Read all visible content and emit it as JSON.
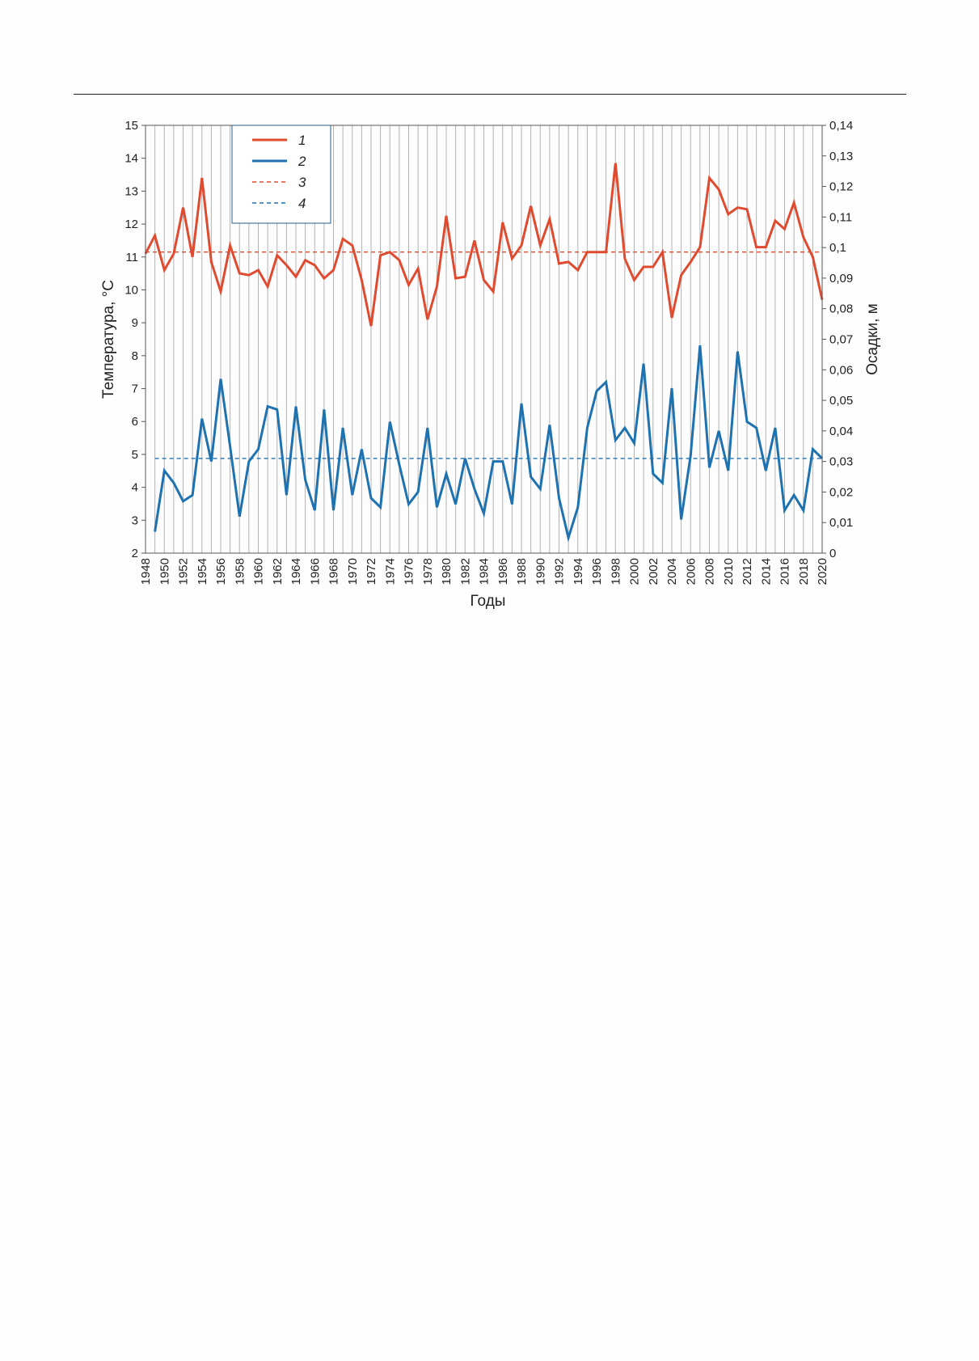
{
  "chart_data": {
    "type": "line",
    "xlabel": "Годы",
    "ylabel_left": "Температура, °С",
    "ylabel_right": "Осадки, м",
    "x": [
      1948,
      1949,
      1950,
      1951,
      1952,
      1953,
      1954,
      1955,
      1956,
      1957,
      1958,
      1959,
      1960,
      1961,
      1962,
      1963,
      1964,
      1965,
      1966,
      1967,
      1968,
      1969,
      1970,
      1971,
      1972,
      1973,
      1974,
      1975,
      1976,
      1977,
      1978,
      1979,
      1980,
      1981,
      1982,
      1983,
      1984,
      1985,
      1986,
      1987,
      1988,
      1989,
      1990,
      1991,
      1992,
      1993,
      1994,
      1995,
      1996,
      1997,
      1998,
      1999,
      2000,
      2001,
      2002,
      2003,
      2004,
      2005,
      2006,
      2007,
      2008,
      2009,
      2010,
      2011,
      2012,
      2013,
      2014,
      2015,
      2016,
      2017,
      2018,
      2019,
      2020
    ],
    "x_tick_labels": [
      "1948",
      "1950",
      "1952",
      "1954",
      "1956",
      "1958",
      "1960",
      "1962",
      "1964",
      "1966",
      "1968",
      "1970",
      "1972",
      "1974",
      "1976",
      "1978",
      "1980",
      "1982",
      "1984",
      "1986",
      "1988",
      "1990",
      "1992",
      "1994",
      "1996",
      "1998",
      "2000",
      "2002",
      "2004",
      "2006",
      "2008",
      "2010",
      "2012",
      "2014",
      "2016",
      "2018",
      "2020"
    ],
    "y_left_ticks": [
      "2",
      "3",
      "4",
      "5",
      "6",
      "7",
      "8",
      "9",
      "10",
      "11",
      "12",
      "13",
      "14",
      "15"
    ],
    "y_right_ticks": [
      "0",
      "0,01",
      "0,02",
      "0,03",
      "0,04",
      "0,05",
      "0,06",
      "0,07",
      "0,08",
      "0,09",
      "0,1",
      "0,11",
      "0,12",
      "0,13",
      "0,14"
    ],
    "ylim_left": [
      2,
      15
    ],
    "ylim_right": [
      0,
      0.14
    ],
    "grid": "vertical",
    "legend_position": "top-left",
    "series": [
      {
        "name": "1",
        "axis": "left",
        "style": "solid",
        "color": "#e04b30",
        "values": [
          11.1,
          11.65,
          10.6,
          11.1,
          12.5,
          11.0,
          13.4,
          10.85,
          9.95,
          11.35,
          10.5,
          10.45,
          10.6,
          10.1,
          11.05,
          10.75,
          10.4,
          10.9,
          10.75,
          10.35,
          10.6,
          11.55,
          11.35,
          10.3,
          8.9,
          11.05,
          11.15,
          10.9,
          10.15,
          10.65,
          9.1,
          10.1,
          12.25,
          10.35,
          10.4,
          11.5,
          10.3,
          9.95,
          12.05,
          10.95,
          11.35,
          12.55,
          11.35,
          12.15,
          10.8,
          10.85,
          10.6,
          11.15,
          11.15,
          11.15,
          13.85,
          10.95,
          10.3,
          10.7,
          10.7,
          11.15,
          9.15,
          10.45,
          10.85,
          11.3,
          13.4,
          13.05,
          12.3,
          12.5,
          12.45,
          11.3,
          11.3,
          12.1,
          11.85,
          12.65,
          11.6,
          11.0,
          9.7
        ]
      },
      {
        "name": "2",
        "axis": "right",
        "style": "solid",
        "color": "#1f72b0",
        "values": [
          null,
          0.007,
          0.027,
          0.023,
          0.017,
          0.019,
          0.044,
          0.03,
          0.057,
          0.035,
          0.012,
          0.03,
          0.034,
          0.048,
          0.047,
          0.019,
          0.048,
          0.024,
          0.014,
          0.047,
          0.014,
          0.041,
          0.019,
          0.034,
          0.018,
          0.015,
          0.043,
          0.029,
          0.016,
          0.02,
          0.041,
          0.015,
          0.026,
          0.016,
          0.031,
          0.021,
          0.013,
          0.03,
          0.03,
          0.016,
          0.049,
          0.025,
          0.021,
          0.042,
          0.018,
          0.005,
          0.015,
          0.041,
          0.053,
          0.056,
          0.037,
          0.041,
          0.036,
          0.062,
          0.026,
          0.023,
          0.054,
          0.011,
          0.032,
          0.068,
          0.028,
          0.04,
          0.027,
          0.066,
          0.043,
          0.041,
          0.027,
          0.041,
          0.014,
          0.019,
          0.014,
          0.034,
          0.031
        ]
      },
      {
        "name": "3",
        "axis": "left",
        "style": "dashed",
        "color": "#e04b30",
        "values": [
          11.15,
          11.15,
          11.15,
          11.15,
          11.15,
          11.15,
          11.15,
          11.15,
          11.15,
          11.15,
          11.15,
          11.15,
          11.15,
          11.15,
          11.15,
          11.15,
          11.15,
          11.15,
          11.15,
          11.15,
          11.15,
          11.15,
          11.15,
          11.15,
          11.15,
          11.15,
          11.15,
          11.15,
          11.15,
          11.15,
          11.15,
          11.15,
          11.15,
          11.15,
          11.15,
          11.15,
          11.15,
          11.15,
          11.15,
          11.15,
          11.15,
          11.15,
          11.15,
          11.15,
          11.15,
          11.15,
          11.15,
          11.15,
          11.15,
          11.15,
          11.15,
          11.15,
          11.15,
          11.15,
          11.15,
          11.15,
          11.15,
          11.15,
          11.15,
          11.15,
          11.15,
          11.15,
          11.15,
          11.15,
          11.15,
          11.15,
          11.15,
          11.15,
          11.15,
          11.15,
          11.15,
          11.15,
          11.15
        ]
      },
      {
        "name": "4",
        "axis": "right",
        "style": "dashed",
        "color": "#1f72b0",
        "values": [
          null,
          0.031,
          0.031,
          0.031,
          0.031,
          0.031,
          0.031,
          0.031,
          0.031,
          0.031,
          0.031,
          0.031,
          0.031,
          0.031,
          0.031,
          0.031,
          0.031,
          0.031,
          0.031,
          0.031,
          0.031,
          0.031,
          0.031,
          0.031,
          0.031,
          0.031,
          0.031,
          0.031,
          0.031,
          0.031,
          0.031,
          0.031,
          0.031,
          0.031,
          0.031,
          0.031,
          0.031,
          0.031,
          0.031,
          0.031,
          0.031,
          0.031,
          0.031,
          0.031,
          0.031,
          0.031,
          0.031,
          0.031,
          0.031,
          0.031,
          0.031,
          0.031,
          0.031,
          0.031,
          0.031,
          0.031,
          0.031,
          0.031,
          0.031,
          0.031,
          0.031,
          0.031,
          0.031,
          0.031,
          0.031,
          0.031,
          0.031,
          0.031,
          0.031,
          0.031,
          0.031,
          0.031,
          0.031
        ]
      }
    ]
  }
}
